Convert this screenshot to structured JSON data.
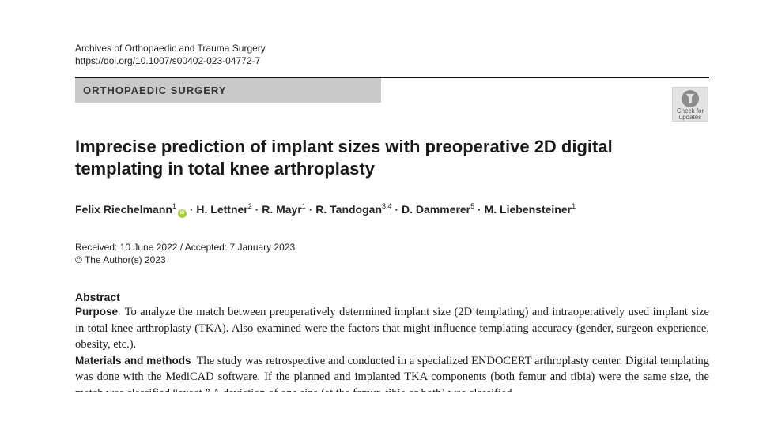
{
  "journal": {
    "name": "Archives of Orthopaedic and Trauma Surgery",
    "doi": "https://doi.org/10.1007/s00402-023-04772-7"
  },
  "section": "ORTHOPAEDIC SURGERY",
  "check_updates": {
    "line1": "Check for",
    "line2": "updates"
  },
  "title": "Imprecise prediction of implant sizes with preoperative 2D digital templating in total knee arthroplasty",
  "authors": [
    {
      "name": "Felix Riechelmann",
      "aff": "1"
    },
    {
      "name": "H. Lettner",
      "aff": "2"
    },
    {
      "name": "R. Mayr",
      "aff": "1"
    },
    {
      "name": "R. Tandogan",
      "aff": "3,4"
    },
    {
      "name": "D. Dammerer",
      "aff": "5"
    },
    {
      "name": "M. Liebensteiner",
      "aff": "1"
    }
  ],
  "author_separator": " · ",
  "dates": {
    "received_accepted": "Received: 10 June 2022 / Accepted: 7 January 2023",
    "copyright": "© The Author(s) 2023"
  },
  "abstract": {
    "heading": "Abstract",
    "purpose_label": "Purpose",
    "purpose_text": "To analyze the match between preoperatively determined implant size (2D templating) and intraoperatively used implant size in total knee arthroplasty (TKA). Also examined were the factors that might influence templating accuracy (gender, surgeon experience, obesity, etc.).",
    "methods_label": "Materials and methods",
    "methods_text": "The study was retrospective and conducted in a specialized ENDOCERT arthroplasty center. Digital templating was done with the MediCAD software. If the planned and implanted TKA components (both femur and tibia) were the same size, the match was classified “exact.” A deviation of one size (at the femur, tibia or both) was classified"
  }
}
